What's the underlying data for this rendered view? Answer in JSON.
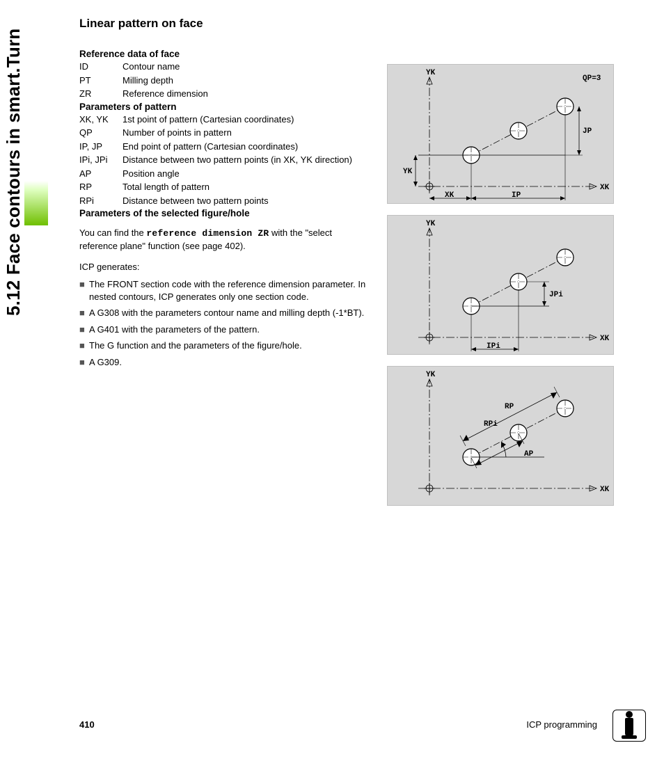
{
  "side_heading": "5.12 Face contours in smart.Turn",
  "title": "Linear pattern on face",
  "section1_head": "Reference data of face",
  "section1_rows": [
    {
      "code": "ID",
      "desc": "Contour name"
    },
    {
      "code": "PT",
      "desc": "Milling depth"
    },
    {
      "code": "ZR",
      "desc": "Reference dimension"
    }
  ],
  "section2_head": "Parameters of pattern",
  "section2_rows": [
    {
      "code": "XK, YK",
      "desc": "1st point of pattern (Cartesian coordinates)"
    },
    {
      "code": "QP",
      "desc": "Number of points in pattern"
    },
    {
      "code": "IP, JP",
      "desc": "End point of pattern (Cartesian coordinates)"
    },
    {
      "code": "IPi, JPi",
      "desc": "Distance between two pattern points (in XK, YK direction)"
    },
    {
      "code": "AP",
      "desc": "Position angle"
    },
    {
      "code": "RP",
      "desc": "Total length of pattern"
    },
    {
      "code": "RPi",
      "desc": "Distance between two pattern points"
    }
  ],
  "section3_head": "Parameters of the selected figure/hole",
  "body1_pre": "You can find the ",
  "body1_mono": "reference dimension ZR",
  "body1_post": " with the \"select reference plane\" function (see page 402).",
  "body2": "ICP generates:",
  "bullets": [
    "The FRONT section code with the reference dimension parameter. In nested contours, ICP generates only one section code.",
    "A G308 with the parameters contour name and milling depth (-1*BT).",
    "A G401 with the parameters of the pattern.",
    "The G function and the parameters of the figure/hole.",
    "A G309."
  ],
  "diag1": {
    "yk": "YK",
    "xk": "XK",
    "qp": "QP=3",
    "jp": "JP",
    "ip": "IP",
    "xk2": "XK",
    "yk2": "YK"
  },
  "diag2": {
    "yk": "YK",
    "xk": "XK",
    "jpi": "JPi",
    "ipi": "IPi"
  },
  "diag3": {
    "yk": "YK",
    "xk": "XK",
    "rp": "RP",
    "rpi": "RPi",
    "ap": "AP"
  },
  "footer": {
    "page": "410",
    "label": "ICP programming"
  },
  "colors": {
    "green": "#6fbf00",
    "diag_bg": "#d7d7d7"
  }
}
